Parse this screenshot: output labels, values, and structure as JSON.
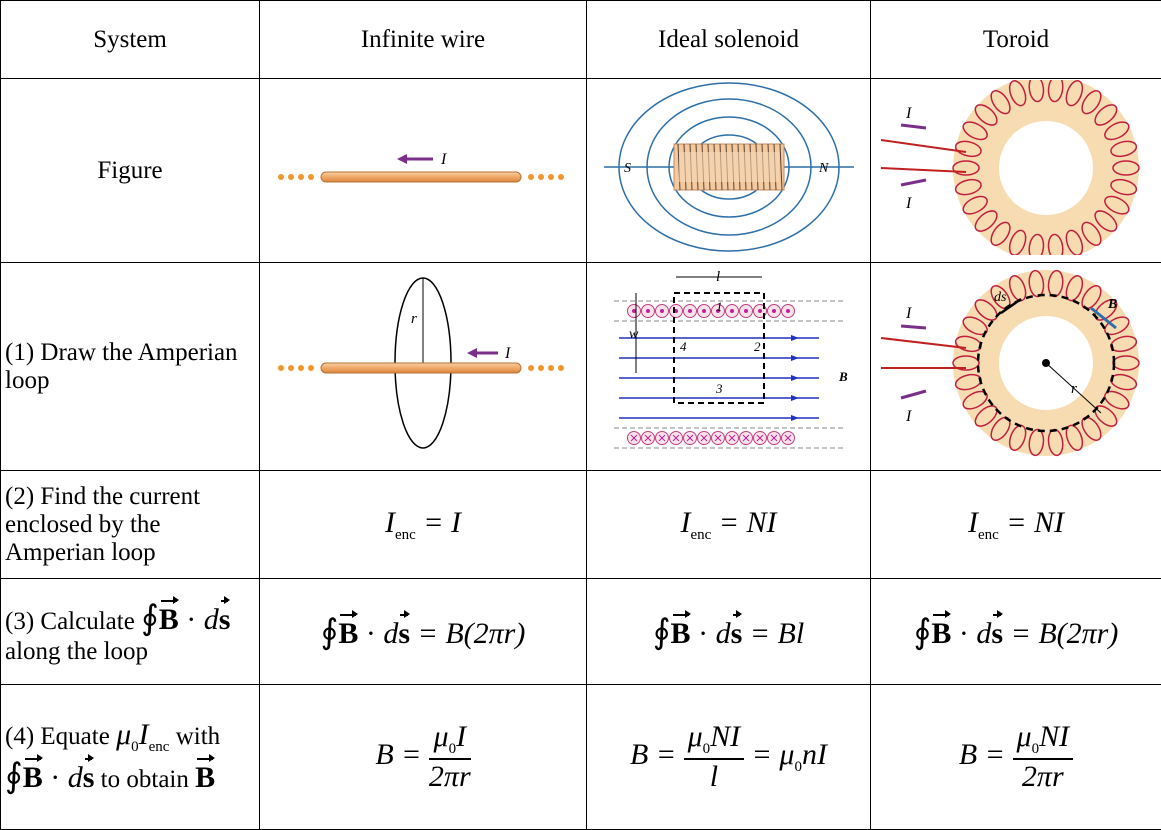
{
  "table": {
    "header": [
      "System",
      "Infinite wire",
      "Ideal solenoid",
      "Toroid"
    ],
    "rows": [
      {
        "label": "Figure"
      },
      {
        "label": "(1) Draw the Amperian loop"
      },
      {
        "label": "(2) Find the current enclosed by the Amperian loop",
        "cells": [
          {
            "lhs": "I",
            "sub": "enc",
            "rhs": "= I"
          },
          {
            "lhs": "I",
            "sub": "enc",
            "rhs": "= NI"
          },
          {
            "lhs": "I",
            "sub": "enc",
            "rhs": "= NI"
          }
        ]
      },
      {
        "label": "(3) Calculate",
        "label_end": "along the loop",
        "cells": [
          "= B(2πr)",
          "= Bl",
          "= B(2πr)"
        ]
      },
      {
        "label": "(4) Equate",
        "label_mid": "with",
        "label_end": "to obtain",
        "cells": [
          {
            "lhs": "B =",
            "num": "I",
            "den": "2πr"
          },
          {
            "lhs": "B =",
            "num": "NI",
            "den": "l",
            "tail": "=",
            "tail_var": "nI"
          },
          {
            "lhs": "B =",
            "num": "NI",
            "den": "2πr"
          }
        ]
      }
    ]
  },
  "notation": {
    "oint": "∮",
    "B": "B",
    "dot": "·",
    "d": "d",
    "s": "s",
    "mu": "μ",
    "zero": "0",
    "enc": "enc",
    "I": "I"
  },
  "figures": {
    "current": "I",
    "south": "S",
    "north": "N",
    "length": "l",
    "width": "w",
    "sides": [
      "1",
      "2",
      "3",
      "4"
    ],
    "field": "B",
    "radius": "r",
    "element": "ds"
  }
}
